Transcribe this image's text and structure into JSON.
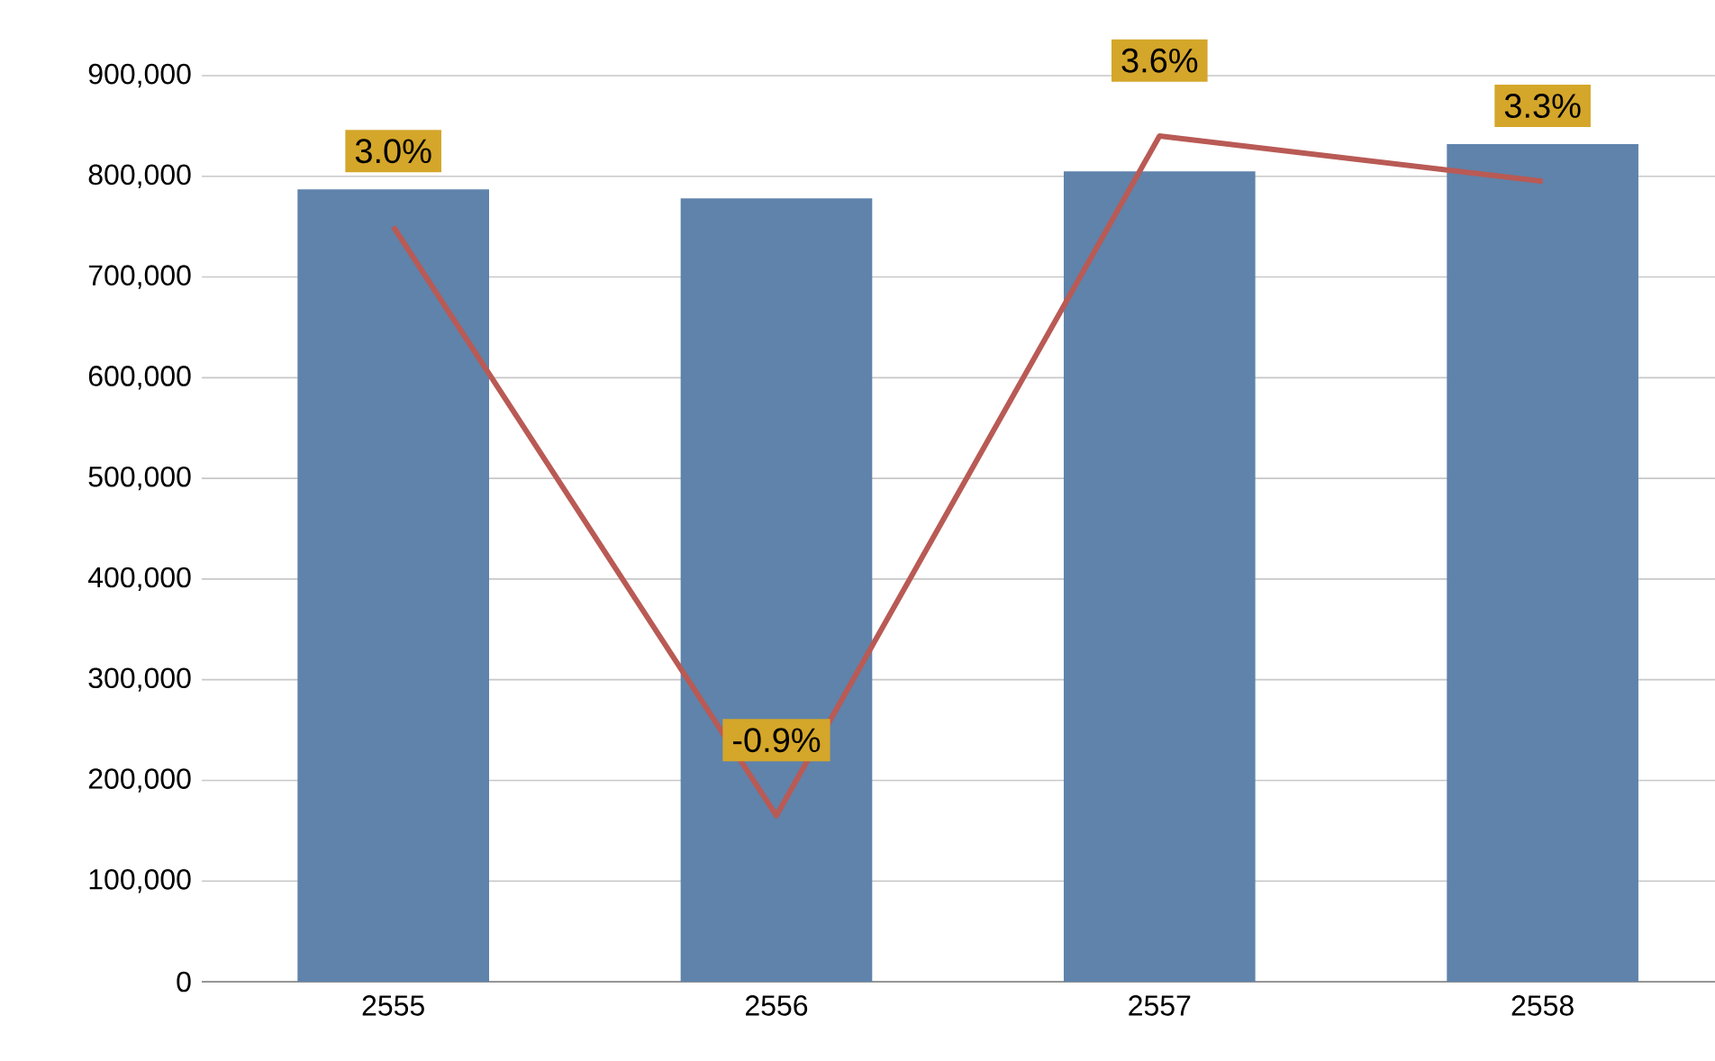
{
  "chart_data": {
    "type": "bar",
    "categories": [
      "2555",
      "2556",
      "2557",
      "2558"
    ],
    "series": [
      {
        "type": "bar",
        "color": "#5f83ab",
        "values": [
          787000,
          778000,
          805000,
          832000
        ]
      },
      {
        "type": "line",
        "axis": "y2",
        "color": "#b95a55",
        "values": [
          3.0,
          -0.9,
          3.6,
          3.3
        ],
        "value_labels": [
          "3.0%",
          "-0.9%",
          "3.6%",
          "3.3%"
        ]
      }
    ],
    "ylim": [
      0,
      900000
    ],
    "yticks": [
      0,
      {
        "value": 100000,
        "label": "100,000"
      },
      {
        "value": 200000,
        "label": "200,000"
      },
      {
        "value": 300000,
        "label": "300,000"
      },
      {
        "value": 400000,
        "label": "400,000"
      },
      {
        "value": 500000,
        "label": "500,000"
      },
      {
        "value": 600000,
        "label": "600,000"
      },
      {
        "value": 700000,
        "label": "700,000"
      },
      {
        "value": 800000,
        "label": "800,000"
      },
      {
        "value": 900000,
        "label": "900,000"
      }
    ],
    "y2lim": [
      -2,
      4
    ],
    "grid": "y",
    "marker": "none"
  }
}
